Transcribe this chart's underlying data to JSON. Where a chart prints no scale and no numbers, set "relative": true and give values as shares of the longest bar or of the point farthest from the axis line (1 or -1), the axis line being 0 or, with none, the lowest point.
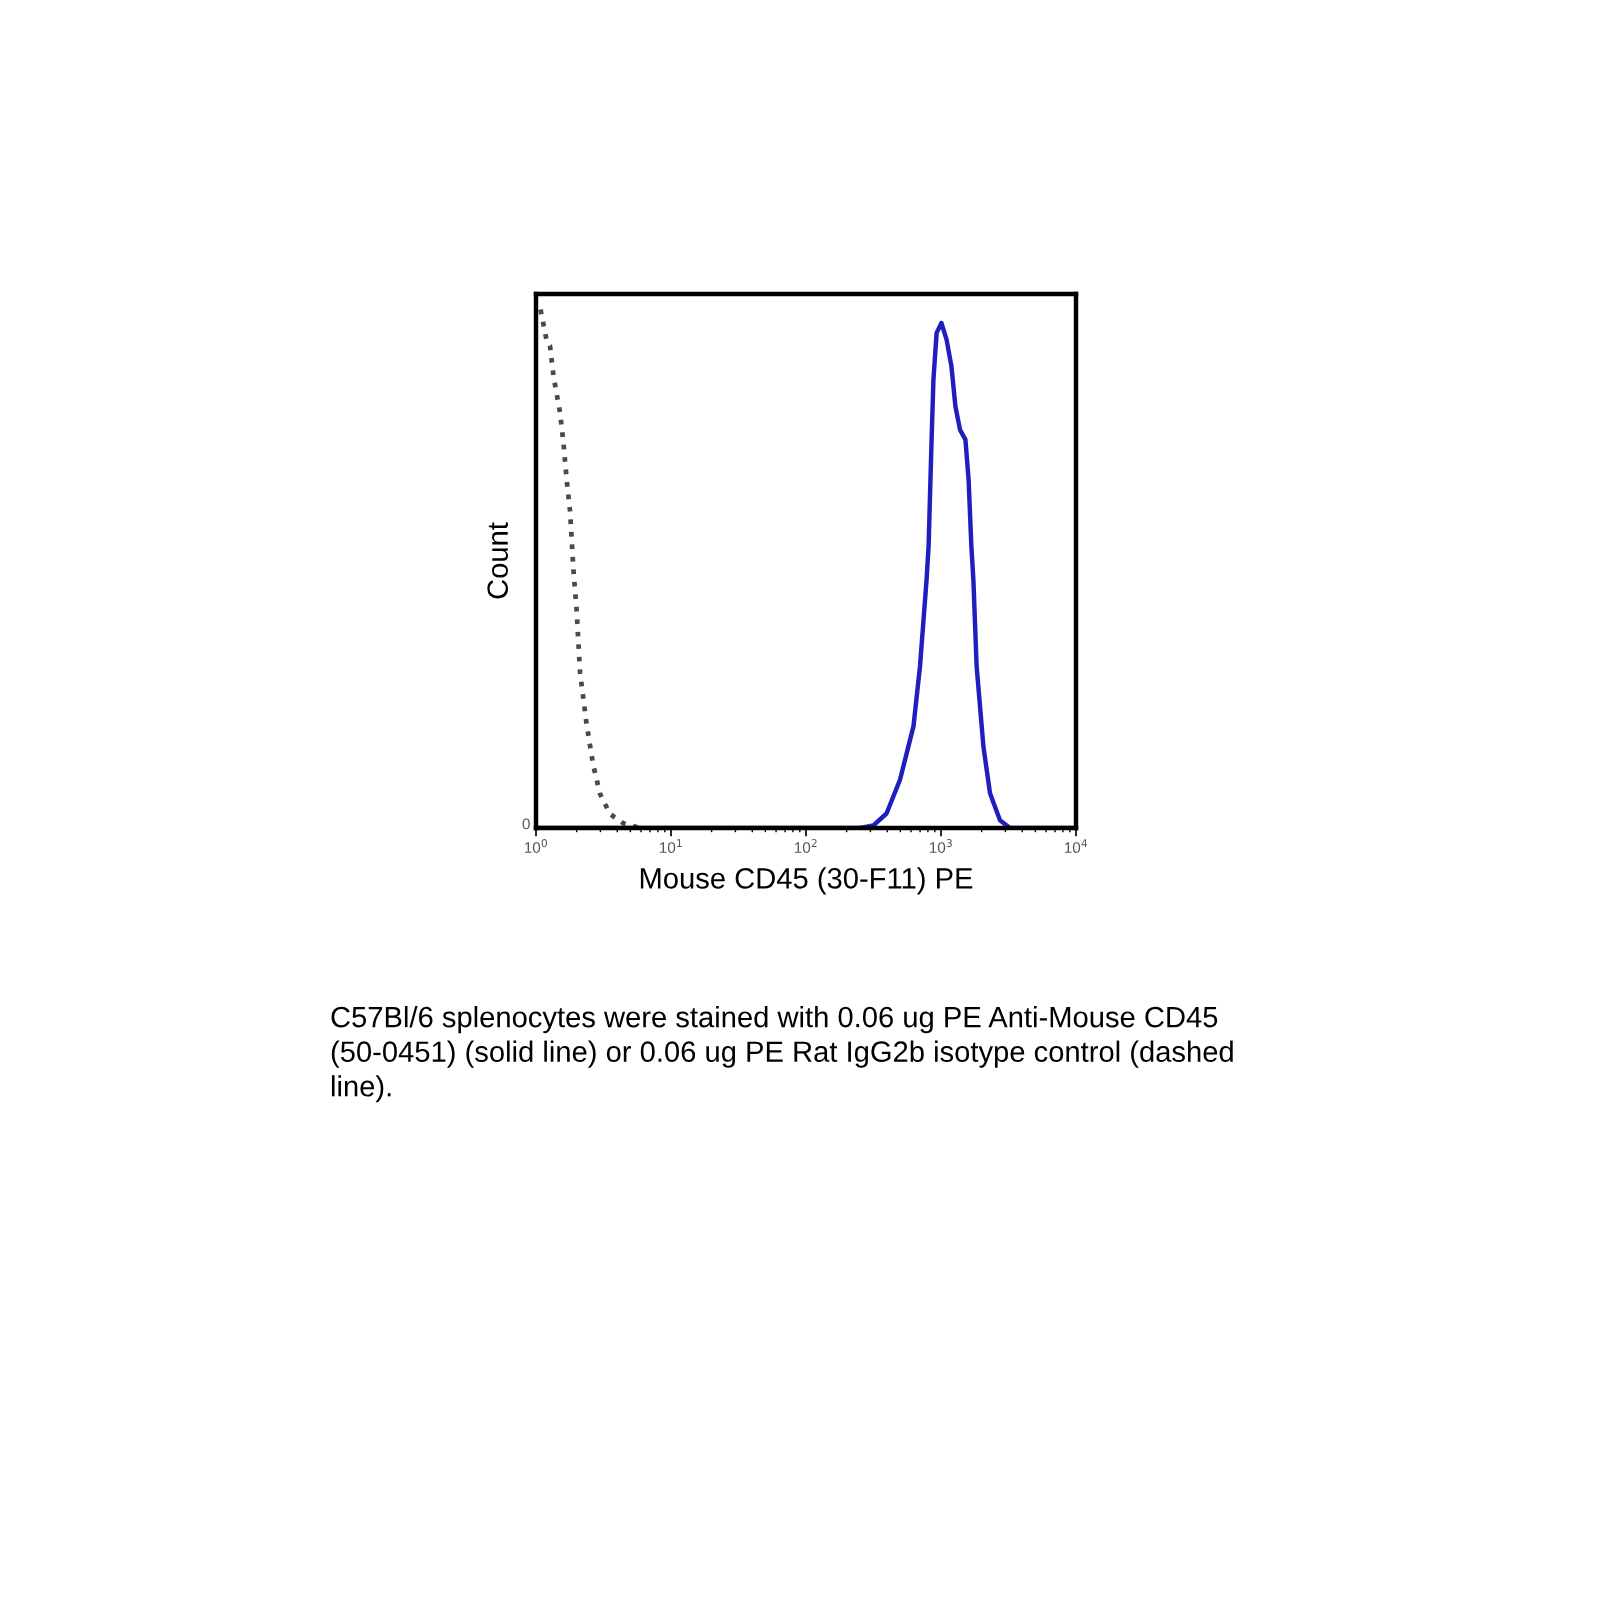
{
  "chart_data": {
    "type": "line",
    "xlabel": "Mouse CD45 (30-F11) PE",
    "ylabel": "Count",
    "log": "x",
    "relative": true,
    "xlim": [
      1,
      10000
    ],
    "xticks": [
      {
        "value": 1,
        "label": "10$^{0}$"
      },
      {
        "value": 10,
        "label": "10$^{1}$"
      },
      {
        "value": 100,
        "label": "10$^{2}$"
      },
      {
        "value": 1000,
        "label": "10$^{3}$"
      },
      {
        "value": 10000,
        "label": "10$^{4}$"
      }
    ],
    "series": [
      {
        "color": "#4a4a4a",
        "line_style": "dotted",
        "x": [
          1.08,
          1.2,
          1.27,
          1.35,
          1.51,
          1.6,
          1.69,
          1.79,
          1.89,
          2.0,
          2.12,
          2.37,
          2.66,
          2.98,
          3.53,
          4.44,
          5.9
        ],
        "values": [
          1.0,
          0.94,
          0.93,
          0.87,
          0.8,
          0.74,
          0.67,
          0.61,
          0.5,
          0.42,
          0.3,
          0.2,
          0.12,
          0.066,
          0.027,
          0.009,
          0
        ]
      },
      {
        "color": "#1f1fbf",
        "line_style": "solid",
        "x": [
          1,
          251,
          316,
          395,
          497,
          625,
          699,
          782,
          809,
          849,
          879,
          928,
          1007,
          1100,
          1194,
          1279,
          1384,
          1517,
          1601,
          1679,
          1737,
          1836,
          2062,
          2307,
          2735,
          3243,
          10000
        ],
        "values": [
          0,
          0,
          0.005,
          0.028,
          0.093,
          0.196,
          0.312,
          0.479,
          0.543,
          0.736,
          0.865,
          0.955,
          0.974,
          0.942,
          0.891,
          0.813,
          0.768,
          0.749,
          0.672,
          0.543,
          0.479,
          0.312,
          0.157,
          0.067,
          0.015,
          0,
          0
        ]
      }
    ],
    "annotations": [
      {
        "text": "0",
        "y": 0
      },
      "C57Bl/6 splenocytes were stained with 0.06 ug PE Anti-Mouse CD45 (50-0451) (solid line) or 0.06 ug PE Rat IgG2b isotype control (dashed line)."
    ]
  }
}
